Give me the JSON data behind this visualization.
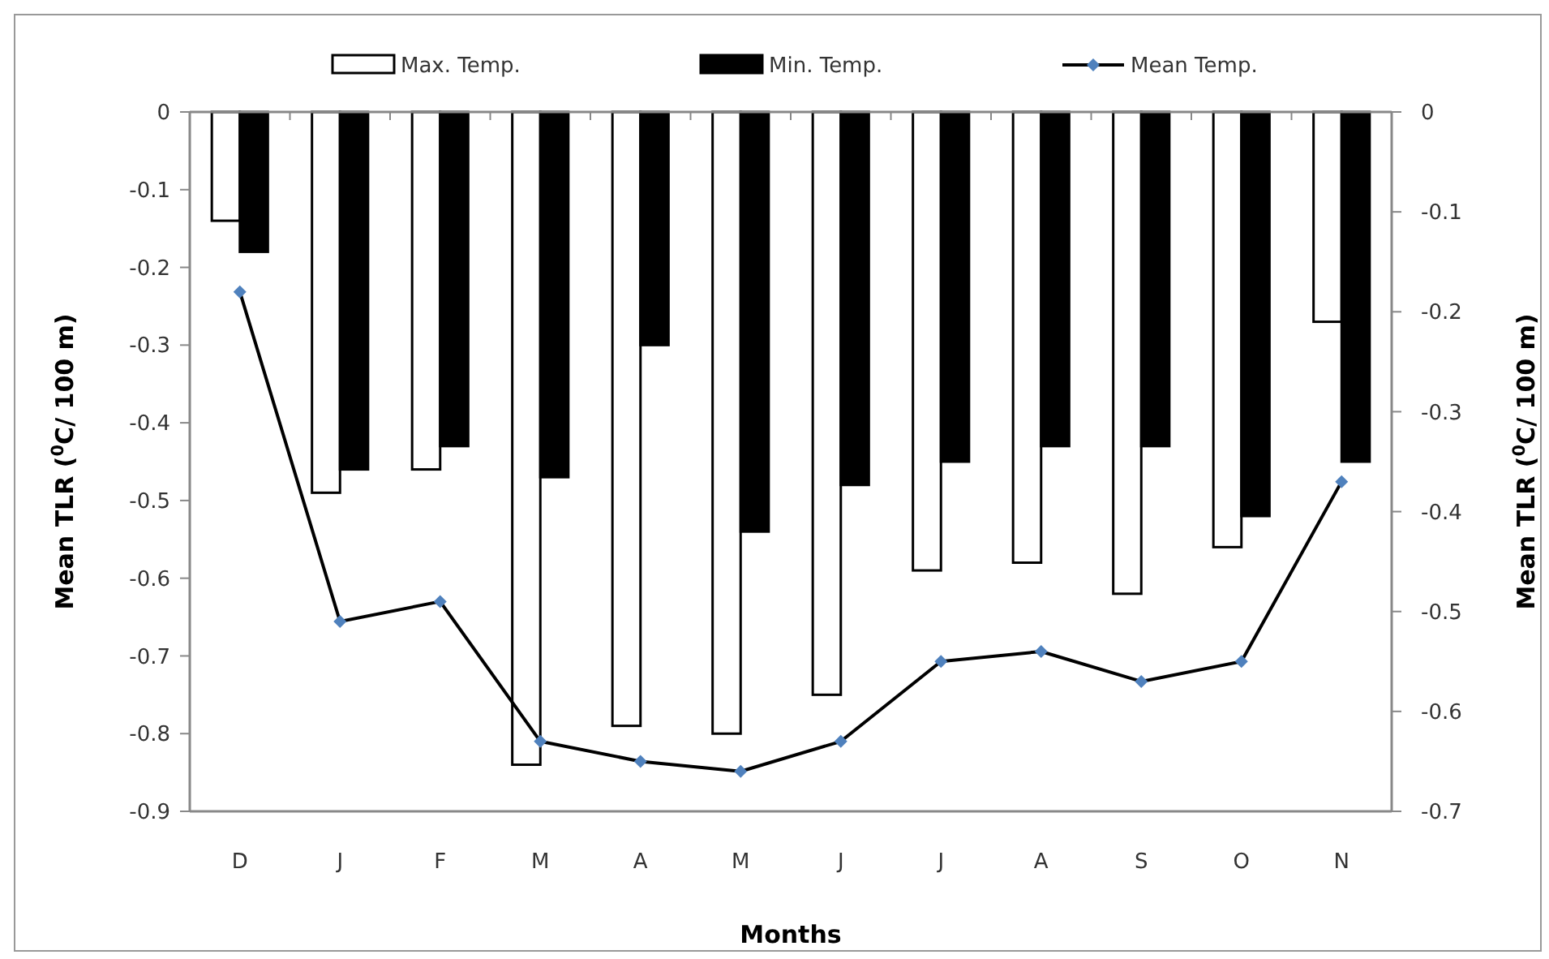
{
  "chart_data": {
    "type": "bar",
    "xlabel": "Months",
    "ylabel": "Mean TLR ($^{0}$C/ 100 m)",
    "y2label": "Mean TLR ($^{0}$C/ 100 m)",
    "categories": [
      "D",
      "J",
      "F",
      "M",
      "A",
      "M",
      "J",
      "J",
      "A",
      "S",
      "O",
      "N"
    ],
    "series": [
      {
        "name": "Max. Temp.",
        "color": "#ffffff",
        "values": [
          -0.14,
          -0.49,
          -0.46,
          -0.84,
          -0.79,
          -0.8,
          -0.75,
          -0.59,
          -0.58,
          -0.62,
          -0.56,
          -0.27
        ]
      },
      {
        "name": "Min. Temp.",
        "color": "#000000",
        "values": [
          -0.18,
          -0.46,
          -0.43,
          -0.47,
          -0.3,
          -0.54,
          -0.48,
          -0.45,
          -0.43,
          -0.43,
          -0.52,
          -0.45
        ]
      },
      {
        "name": "Mean Temp.",
        "type": "line",
        "axis": "y2",
        "color": "#000000",
        "marker": "diamond",
        "values": [
          -0.18,
          -0.51,
          -0.49,
          -0.63,
          -0.65,
          -0.66,
          -0.63,
          -0.55,
          -0.54,
          -0.57,
          -0.55,
          -0.37
        ]
      }
    ],
    "ylim": [
      -0.9,
      0
    ],
    "yticks": [
      0,
      -0.1,
      -0.2,
      -0.3,
      -0.4,
      -0.5,
      -0.6,
      -0.7,
      -0.8,
      -0.9
    ],
    "y2lim": [
      -0.7,
      0
    ],
    "y2ticks": [
      0,
      -0.1,
      -0.2,
      -0.3,
      -0.4,
      -0.5,
      -0.6,
      -0.7
    ],
    "grid": false,
    "legend": "top"
  }
}
